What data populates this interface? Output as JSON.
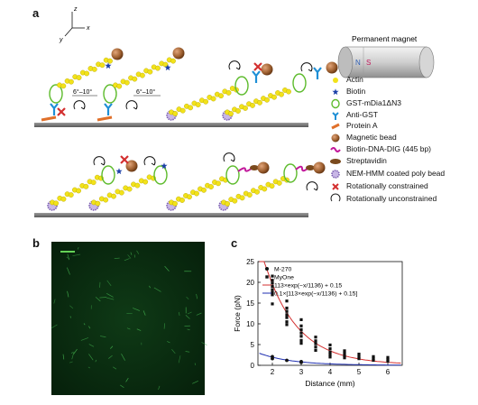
{
  "panels": {
    "a": {
      "label": "a"
    },
    "b": {
      "label": "b"
    },
    "c": {
      "label": "c"
    }
  },
  "panel_a": {
    "axes": {
      "z": "z",
      "x": "x",
      "y": "y"
    },
    "angle_labels": [
      "6°–10°",
      "6°–10°"
    ],
    "magnet": {
      "title": "Permanent magnet",
      "north": "N",
      "south": "S",
      "north_color": "#2f5fb5",
      "south_color": "#c2185b"
    },
    "legend": [
      {
        "label": "Actin",
        "icon": "actin-bead-icon",
        "color": "#f2e21a"
      },
      {
        "label": "Biotin",
        "icon": "biotin-star-icon",
        "color": "#1b3fa8"
      },
      {
        "label": "GST-mDia1ΔN3",
        "icon": "formin-ring-icon",
        "color": "#5dbb2c"
      },
      {
        "label": "Anti-GST",
        "icon": "antibody-y-icon",
        "color": "#1e8fd6"
      },
      {
        "label": "Protein A",
        "icon": "protein-a-icon",
        "color": "#e0702a"
      },
      {
        "label": "Magnetic bead",
        "icon": "magnetic-bead-icon",
        "color": "#a0632f"
      },
      {
        "label": "Biotin-DNA-DIG (445 bp)",
        "icon": "dna-linker-icon",
        "color": "#c2189b"
      },
      {
        "label": "Streptavidin",
        "icon": "streptavidin-icon",
        "color": "#7a4a1d"
      },
      {
        "label": "NEM-HMM coated poly bead",
        "icon": "hmm-bead-icon",
        "color": "#9b7fc8"
      },
      {
        "label": "Rotationally constrained",
        "icon": "red-cross-icon",
        "color": "#d32f2f"
      },
      {
        "label": "Rotationally unconstrained",
        "icon": "rotation-arrow-icon",
        "color": "#111111"
      }
    ]
  },
  "chart_data": {
    "type": "scatter",
    "title": "",
    "xlabel": "Distance (mm)",
    "ylabel": "Force (pN)",
    "xlim": [
      1.5,
      6.5
    ],
    "ylim": [
      0,
      25
    ],
    "xticks": [
      "2",
      "3",
      "4",
      "5",
      "6"
    ],
    "yticks": [
      "0",
      "5",
      "10",
      "15",
      "20",
      "25"
    ],
    "legend_position": "top-right",
    "series": [
      {
        "name": "M-270",
        "marker": "circle",
        "color": "#111111",
        "x": [
          2.0,
          2.0,
          2.5,
          3.0,
          3.0
        ],
        "y": [
          2.1,
          1.6,
          1.2,
          0.9,
          0.7
        ]
      },
      {
        "name": "MyOne",
        "marker": "square",
        "color": "#111111",
        "x": [
          2.0,
          2.0,
          2.0,
          2.0,
          2.0,
          2.0,
          2.0,
          2.0,
          2.5,
          2.5,
          2.5,
          2.5,
          2.5,
          2.5,
          2.5,
          3.0,
          3.0,
          3.0,
          3.0,
          3.0,
          3.0,
          3.0,
          3.5,
          3.5,
          3.5,
          3.5,
          3.5,
          4.0,
          4.0,
          4.0,
          4.0,
          4.0,
          4.5,
          4.5,
          4.5,
          4.5,
          5.0,
          5.0,
          5.0,
          5.5,
          5.5,
          5.5,
          6.0,
          6.0,
          6.0
        ],
        "y": [
          21.5,
          20.5,
          19.8,
          19.0,
          18.2,
          17.5,
          17.0,
          14.8,
          15.5,
          13.8,
          13.0,
          12.2,
          11.5,
          10.5,
          9.8,
          11.0,
          9.5,
          8.6,
          7.8,
          7.0,
          6.0,
          5.3,
          6.8,
          5.9,
          5.2,
          4.4,
          3.6,
          4.9,
          4.0,
          3.2,
          2.6,
          2.0,
          3.5,
          2.9,
          2.3,
          1.8,
          2.7,
          2.1,
          1.6,
          2.1,
          1.6,
          1.2,
          1.9,
          1.4,
          1.0
        ]
      },
      {
        "name": "113×exp(−x/1136) + 0.15",
        "kind": "fit",
        "color": "#d32f2f"
      },
      {
        "name": "0.1×[113×exp(−x/1136) + 0.15]",
        "kind": "fit",
        "color": "#1f2fb0"
      }
    ]
  }
}
